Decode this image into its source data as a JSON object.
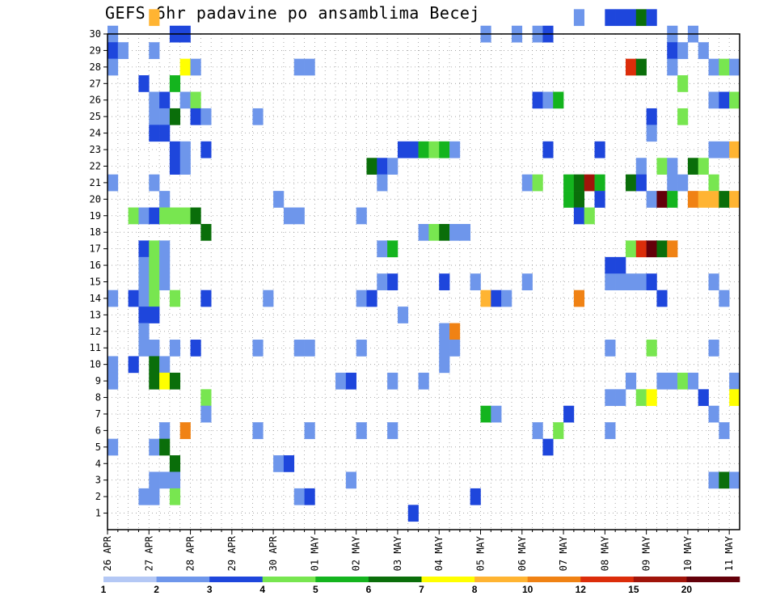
{
  "chart_data": {
    "type": "heatmap",
    "title": "GEFS 6hr padavine po ansamblima Becej",
    "y_ticks": [
      "1",
      "2",
      "3",
      "4",
      "5",
      "6",
      "7",
      "8",
      "9",
      "10",
      "11",
      "12",
      "13",
      "14",
      "15",
      "16",
      "17",
      "18",
      "19",
      "20",
      "21",
      "22",
      "23",
      "24",
      "25",
      "26",
      "27",
      "28",
      "29",
      "30"
    ],
    "x_ticks": [
      "26 APR",
      "27 APR",
      "28 APR",
      "29 APR",
      "30 APR",
      "01 MAY",
      "02 MAY",
      "03 MAY",
      "04 MAY",
      "05 MAY",
      "06 MAY",
      "07 MAY",
      "08 MAY",
      "09 MAY",
      "10 MAY",
      "11 MAY"
    ],
    "y_range": [
      0,
      30
    ],
    "x_time_steps": 61,
    "grid": "dotted",
    "colorbar": {
      "labels": [
        "1",
        "2",
        "3",
        "4",
        "5",
        "6",
        "7",
        "8",
        "10",
        "12",
        "15",
        "20"
      ],
      "colors": [
        "#b4c8f5",
        "#6e96eb",
        "#1e46dc",
        "#78e650",
        "#14b41e",
        "#0a6e0a",
        "#ffff00",
        "#ffb432",
        "#f08214",
        "#dc2d0a",
        "#a0140a",
        "#64000a"
      ]
    },
    "cells": [
      [
        0,
        29,
        1
      ],
      [
        0,
        28,
        2
      ],
      [
        0,
        27,
        1
      ],
      [
        0,
        20,
        1
      ],
      [
        0,
        13,
        1
      ],
      [
        0,
        9,
        1
      ],
      [
        0,
        8,
        1
      ],
      [
        0,
        4,
        1
      ],
      [
        1,
        28,
        1
      ],
      [
        2,
        18,
        3
      ],
      [
        2,
        13,
        2
      ],
      [
        2,
        9,
        2
      ],
      [
        3,
        26,
        2
      ],
      [
        3,
        18,
        1
      ],
      [
        3,
        16,
        2
      ],
      [
        3,
        15,
        1
      ],
      [
        3,
        14,
        1
      ],
      [
        3,
        13,
        1
      ],
      [
        3,
        12,
        2
      ],
      [
        3,
        11,
        1
      ],
      [
        3,
        10,
        1
      ],
      [
        3,
        1,
        1
      ],
      [
        4,
        30,
        7
      ],
      [
        4,
        28,
        1
      ],
      [
        4,
        25,
        1
      ],
      [
        4,
        24,
        1
      ],
      [
        4,
        23,
        2
      ],
      [
        4,
        20,
        1
      ],
      [
        4,
        18,
        2
      ],
      [
        4,
        16,
        3
      ],
      [
        4,
        15,
        3
      ],
      [
        4,
        14,
        3
      ],
      [
        4,
        13,
        3
      ],
      [
        4,
        12,
        2
      ],
      [
        4,
        10,
        1
      ],
      [
        4,
        9,
        5
      ],
      [
        4,
        8,
        5
      ],
      [
        4,
        4,
        1
      ],
      [
        4,
        2,
        1
      ],
      [
        4,
        1,
        1
      ],
      [
        5,
        25,
        2
      ],
      [
        5,
        24,
        1
      ],
      [
        5,
        23,
        2
      ],
      [
        5,
        19,
        1
      ],
      [
        5,
        18,
        3
      ],
      [
        5,
        16,
        1
      ],
      [
        5,
        15,
        1
      ],
      [
        5,
        14,
        1
      ],
      [
        5,
        9,
        1
      ],
      [
        5,
        8,
        6
      ],
      [
        5,
        5,
        1
      ],
      [
        5,
        4,
        5
      ],
      [
        5,
        2,
        1
      ],
      [
        6,
        29,
        2
      ],
      [
        6,
        26,
        4
      ],
      [
        6,
        24,
        5
      ],
      [
        6,
        22,
        2
      ],
      [
        6,
        21,
        2
      ],
      [
        6,
        18,
        3
      ],
      [
        6,
        13,
        3
      ],
      [
        6,
        10,
        1
      ],
      [
        6,
        8,
        5
      ],
      [
        6,
        3,
        5
      ],
      [
        6,
        2,
        1
      ],
      [
        6,
        1,
        3
      ],
      [
        7,
        29,
        2
      ],
      [
        7,
        27,
        6
      ],
      [
        7,
        25,
        1
      ],
      [
        7,
        22,
        1
      ],
      [
        7,
        21,
        1
      ],
      [
        7,
        18,
        3
      ],
      [
        7,
        5,
        8
      ],
      [
        8,
        27,
        1
      ],
      [
        8,
        25,
        3
      ],
      [
        8,
        24,
        2
      ],
      [
        8,
        18,
        5
      ],
      [
        8,
        10,
        2
      ],
      [
        9,
        24,
        1
      ],
      [
        9,
        22,
        2
      ],
      [
        9,
        17,
        5
      ],
      [
        9,
        13,
        2
      ],
      [
        9,
        7,
        3
      ],
      [
        9,
        6,
        1
      ],
      [
        14,
        24,
        1
      ],
      [
        14,
        10,
        1
      ],
      [
        14,
        5,
        1
      ],
      [
        15,
        13,
        1
      ],
      [
        16,
        19,
        1
      ],
      [
        16,
        3,
        1
      ],
      [
        17,
        18,
        1
      ],
      [
        17,
        3,
        2
      ],
      [
        18,
        27,
        1
      ],
      [
        18,
        18,
        1
      ],
      [
        18,
        10,
        1
      ],
      [
        18,
        1,
        1
      ],
      [
        19,
        27,
        1
      ],
      [
        19,
        10,
        1
      ],
      [
        19,
        5,
        1
      ],
      [
        19,
        1,
        2
      ],
      [
        22,
        8,
        1
      ],
      [
        23,
        8,
        2
      ],
      [
        23,
        2,
        1
      ],
      [
        24,
        18,
        1
      ],
      [
        24,
        13,
        1
      ],
      [
        24,
        10,
        1
      ],
      [
        24,
        5,
        1
      ],
      [
        25,
        21,
        5
      ],
      [
        25,
        13,
        2
      ],
      [
        26,
        21,
        2
      ],
      [
        26,
        20,
        1
      ],
      [
        26,
        16,
        1
      ],
      [
        26,
        14,
        1
      ],
      [
        27,
        21,
        1
      ],
      [
        27,
        16,
        4
      ],
      [
        27,
        14,
        2
      ],
      [
        27,
        8,
        1
      ],
      [
        27,
        5,
        1
      ],
      [
        28,
        22,
        2
      ],
      [
        28,
        12,
        1
      ],
      [
        29,
        22,
        2
      ],
      [
        29,
        0,
        2
      ],
      [
        30,
        22,
        4
      ],
      [
        30,
        17,
        1
      ],
      [
        30,
        8,
        1
      ],
      [
        31,
        22,
        3
      ],
      [
        31,
        17,
        3
      ],
      [
        32,
        22,
        4
      ],
      [
        32,
        17,
        5
      ],
      [
        32,
        14,
        2
      ],
      [
        32,
        11,
        1
      ],
      [
        32,
        10,
        1
      ],
      [
        32,
        9,
        1
      ],
      [
        33,
        22,
        1
      ],
      [
        33,
        17,
        1
      ],
      [
        33,
        11,
        8
      ],
      [
        33,
        10,
        1
      ],
      [
        34,
        17,
        1
      ],
      [
        35,
        14,
        1
      ],
      [
        35,
        1,
        2
      ],
      [
        36,
        29,
        1
      ],
      [
        36,
        13,
        7
      ],
      [
        36,
        6,
        4
      ],
      [
        37,
        13,
        2
      ],
      [
        37,
        6,
        1
      ],
      [
        38,
        13,
        1
      ],
      [
        39,
        29,
        1
      ],
      [
        40,
        20,
        1
      ],
      [
        40,
        14,
        1
      ],
      [
        41,
        29,
        1
      ],
      [
        41,
        25,
        2
      ],
      [
        41,
        20,
        3
      ],
      [
        41,
        5,
        1
      ],
      [
        42,
        29,
        2
      ],
      [
        42,
        25,
        1
      ],
      [
        42,
        22,
        2
      ],
      [
        42,
        4,
        2
      ],
      [
        43,
        25,
        4
      ],
      [
        43,
        5,
        3
      ],
      [
        44,
        20,
        4
      ],
      [
        44,
        19,
        4
      ],
      [
        44,
        6,
        2
      ],
      [
        45,
        30,
        1
      ],
      [
        45,
        20,
        5
      ],
      [
        45,
        19,
        5
      ],
      [
        45,
        18,
        2
      ],
      [
        45,
        13,
        8
      ],
      [
        46,
        20,
        10
      ],
      [
        46,
        18,
        3
      ],
      [
        47,
        22,
        2
      ],
      [
        47,
        20,
        4
      ],
      [
        47,
        19,
        2
      ],
      [
        48,
        30,
        2
      ],
      [
        48,
        15,
        2
      ],
      [
        48,
        14,
        1
      ],
      [
        48,
        10,
        1
      ],
      [
        48,
        7,
        1
      ],
      [
        48,
        5,
        1
      ],
      [
        49,
        30,
        2
      ],
      [
        49,
        15,
        2
      ],
      [
        49,
        14,
        1
      ],
      [
        49,
        7,
        1
      ],
      [
        50,
        30,
        2
      ],
      [
        50,
        27,
        9
      ],
      [
        50,
        20,
        5
      ],
      [
        50,
        16,
        3
      ],
      [
        50,
        14,
        1
      ],
      [
        50,
        8,
        1
      ],
      [
        51,
        30,
        5
      ],
      [
        51,
        27,
        5
      ],
      [
        51,
        21,
        1
      ],
      [
        51,
        20,
        2
      ],
      [
        51,
        16,
        9
      ],
      [
        51,
        14,
        1
      ],
      [
        51,
        7,
        3
      ],
      [
        52,
        30,
        2
      ],
      [
        52,
        24,
        2
      ],
      [
        52,
        23,
        1
      ],
      [
        52,
        19,
        1
      ],
      [
        52,
        16,
        11
      ],
      [
        52,
        14,
        2
      ],
      [
        52,
        10,
        3
      ],
      [
        52,
        7,
        6
      ],
      [
        53,
        21,
        3
      ],
      [
        53,
        19,
        11
      ],
      [
        53,
        16,
        5
      ],
      [
        53,
        13,
        2
      ],
      [
        53,
        8,
        1
      ],
      [
        54,
        29,
        1
      ],
      [
        54,
        28,
        2
      ],
      [
        54,
        27,
        1
      ],
      [
        54,
        21,
        1
      ],
      [
        54,
        20,
        1
      ],
      [
        54,
        19,
        4
      ],
      [
        54,
        16,
        8
      ],
      [
        54,
        8,
        1
      ],
      [
        55,
        28,
        1
      ],
      [
        55,
        26,
        3
      ],
      [
        55,
        24,
        3
      ],
      [
        55,
        20,
        1
      ],
      [
        55,
        8,
        3
      ],
      [
        56,
        29,
        1
      ],
      [
        56,
        21,
        5
      ],
      [
        56,
        19,
        8
      ],
      [
        56,
        8,
        1
      ],
      [
        57,
        28,
        1
      ],
      [
        57,
        21,
        3
      ],
      [
        57,
        19,
        7
      ],
      [
        57,
        7,
        2
      ],
      [
        58,
        27,
        1
      ],
      [
        58,
        25,
        1
      ],
      [
        58,
        22,
        1
      ],
      [
        58,
        20,
        3
      ],
      [
        58,
        19,
        7
      ],
      [
        58,
        14,
        1
      ],
      [
        58,
        10,
        1
      ],
      [
        58,
        6,
        1
      ],
      [
        58,
        2,
        1
      ],
      [
        59,
        27,
        3
      ],
      [
        59,
        25,
        2
      ],
      [
        59,
        22,
        1
      ],
      [
        59,
        19,
        5
      ],
      [
        59,
        13,
        1
      ],
      [
        59,
        5,
        1
      ],
      [
        59,
        2,
        5
      ],
      [
        60,
        27,
        1
      ],
      [
        60,
        25,
        3
      ],
      [
        60,
        22,
        7
      ],
      [
        60,
        19,
        7
      ],
      [
        60,
        8,
        1
      ],
      [
        60,
        7,
        6
      ],
      [
        60,
        2,
        1
      ]
    ]
  }
}
